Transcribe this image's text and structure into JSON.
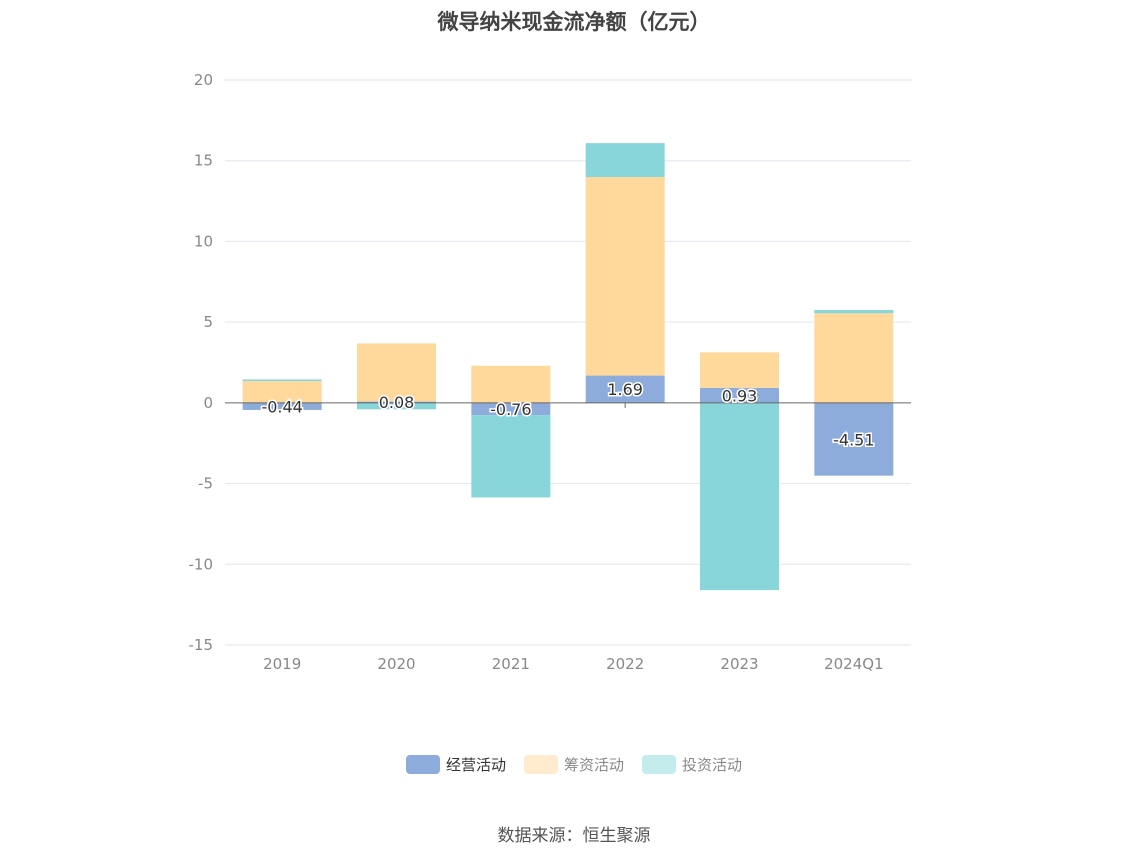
{
  "chart_data": {
    "type": "bar",
    "stacked": true,
    "title": "微导纳米现金流净额（亿元）",
    "categories": [
      "2019",
      "2020",
      "2021",
      "2022",
      "2023",
      "2024Q1"
    ],
    "ylim": [
      -15,
      20
    ],
    "yticks": [
      20,
      15,
      10,
      5,
      0,
      -5,
      -10,
      -15
    ],
    "grid": true,
    "legend_position": "bottom",
    "series": [
      {
        "name": "经营活动",
        "color": "#8eacdb",
        "values": [
          -0.44,
          0.08,
          -0.76,
          1.69,
          0.93,
          -4.51
        ],
        "labels": [
          "-0.44",
          "0.08",
          "-0.76",
          "1.69",
          "0.93",
          "-4.51"
        ]
      },
      {
        "name": "筹资活动",
        "color": "#ffd89b",
        "values": [
          1.35,
          3.6,
          2.3,
          12.3,
          2.2,
          5.55
        ]
      },
      {
        "name": "投资活动",
        "color": "#88d6d9",
        "values": [
          0.1,
          -0.4,
          -5.1,
          2.1,
          -11.6,
          0.2
        ]
      }
    ]
  },
  "legend": [
    {
      "label": "经营活动",
      "color": "#8eacdb",
      "legend_color": "#8eacdb",
      "state": "on"
    },
    {
      "label": "筹资活动",
      "color": "#ffd89b",
      "legend_color": "#ffeccf",
      "state": "off"
    },
    {
      "label": "投资活动",
      "color": "#88d6d9",
      "legend_color": "#c5eced",
      "state": "off"
    }
  ],
  "source": "数据来源：恒生聚源"
}
